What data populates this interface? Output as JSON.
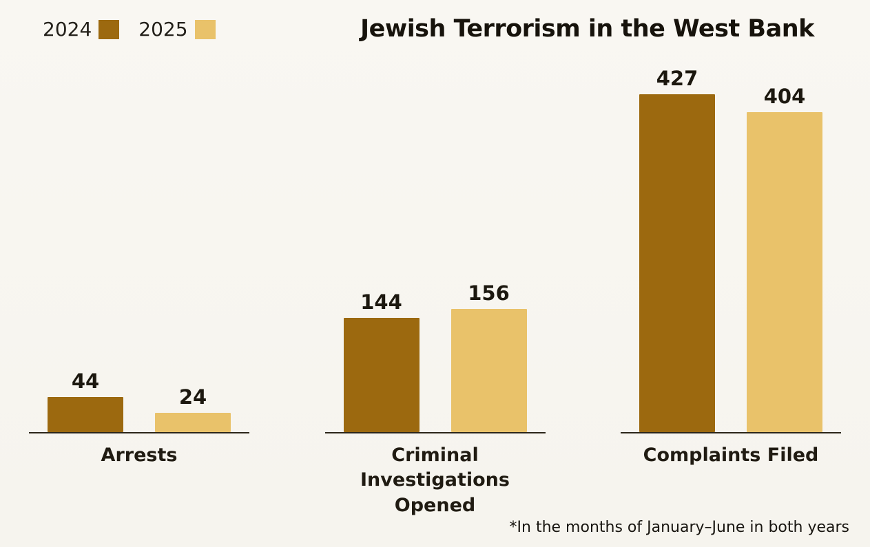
{
  "title": "Jewish Terrorism in the West Bank",
  "legend": {
    "items": [
      {
        "label": "2024",
        "color": "#9c690f"
      },
      {
        "label": "2025",
        "color": "#e9c26a"
      }
    ]
  },
  "footnote": "*In the months of January–June in both years",
  "chart_data": {
    "type": "bar",
    "title": "Jewish Terrorism in the West Bank",
    "categories": [
      "Arrests",
      "Criminal Investigations Opened",
      "Complaints Filed"
    ],
    "series": [
      {
        "name": "2024",
        "values": [
          44,
          144,
          427
        ],
        "color": "#9c690f"
      },
      {
        "name": "2025",
        "values": [
          24,
          156,
          404
        ],
        "color": "#e9c26a"
      }
    ],
    "xlabel": "",
    "ylabel": "",
    "ylim": [
      0,
      430
    ],
    "grid": false,
    "legend_position": "top-left",
    "value_labels": true,
    "footnote": "*In the months of January–June in both years"
  }
}
